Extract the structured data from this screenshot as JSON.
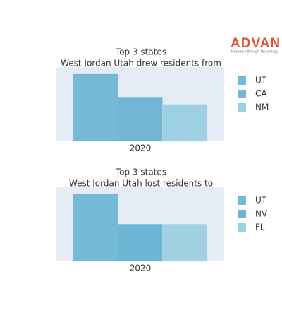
{
  "logo": {
    "name": "ADVAN",
    "tagline": "Research through Technology"
  },
  "chart_data": [
    {
      "type": "bar",
      "title": "Top 3 states",
      "subtitle": "West Jordan Utah drew residents from",
      "categories": [
        "2020"
      ],
      "series": [
        {
          "name": "UT",
          "color": "#74bad6",
          "values": [
            100
          ]
        },
        {
          "name": "CA",
          "color": "#72b6d5",
          "values": [
            66
          ]
        },
        {
          "name": "NM",
          "color": "#9dd0e3",
          "values": [
            55
          ]
        }
      ],
      "ylim": [
        0,
        110
      ]
    },
    {
      "type": "bar",
      "title": "Top 3 states",
      "subtitle": "West Jordan Utah lost residents to",
      "categories": [
        "2020"
      ],
      "series": [
        {
          "name": "UT",
          "color": "#74bad6",
          "values": [
            100
          ]
        },
        {
          "name": "NV",
          "color": "#6db5d4",
          "values": [
            55
          ]
        },
        {
          "name": "FL",
          "color": "#9fd1e3",
          "values": [
            55
          ]
        }
      ],
      "ylim": [
        0,
        109
      ]
    }
  ]
}
